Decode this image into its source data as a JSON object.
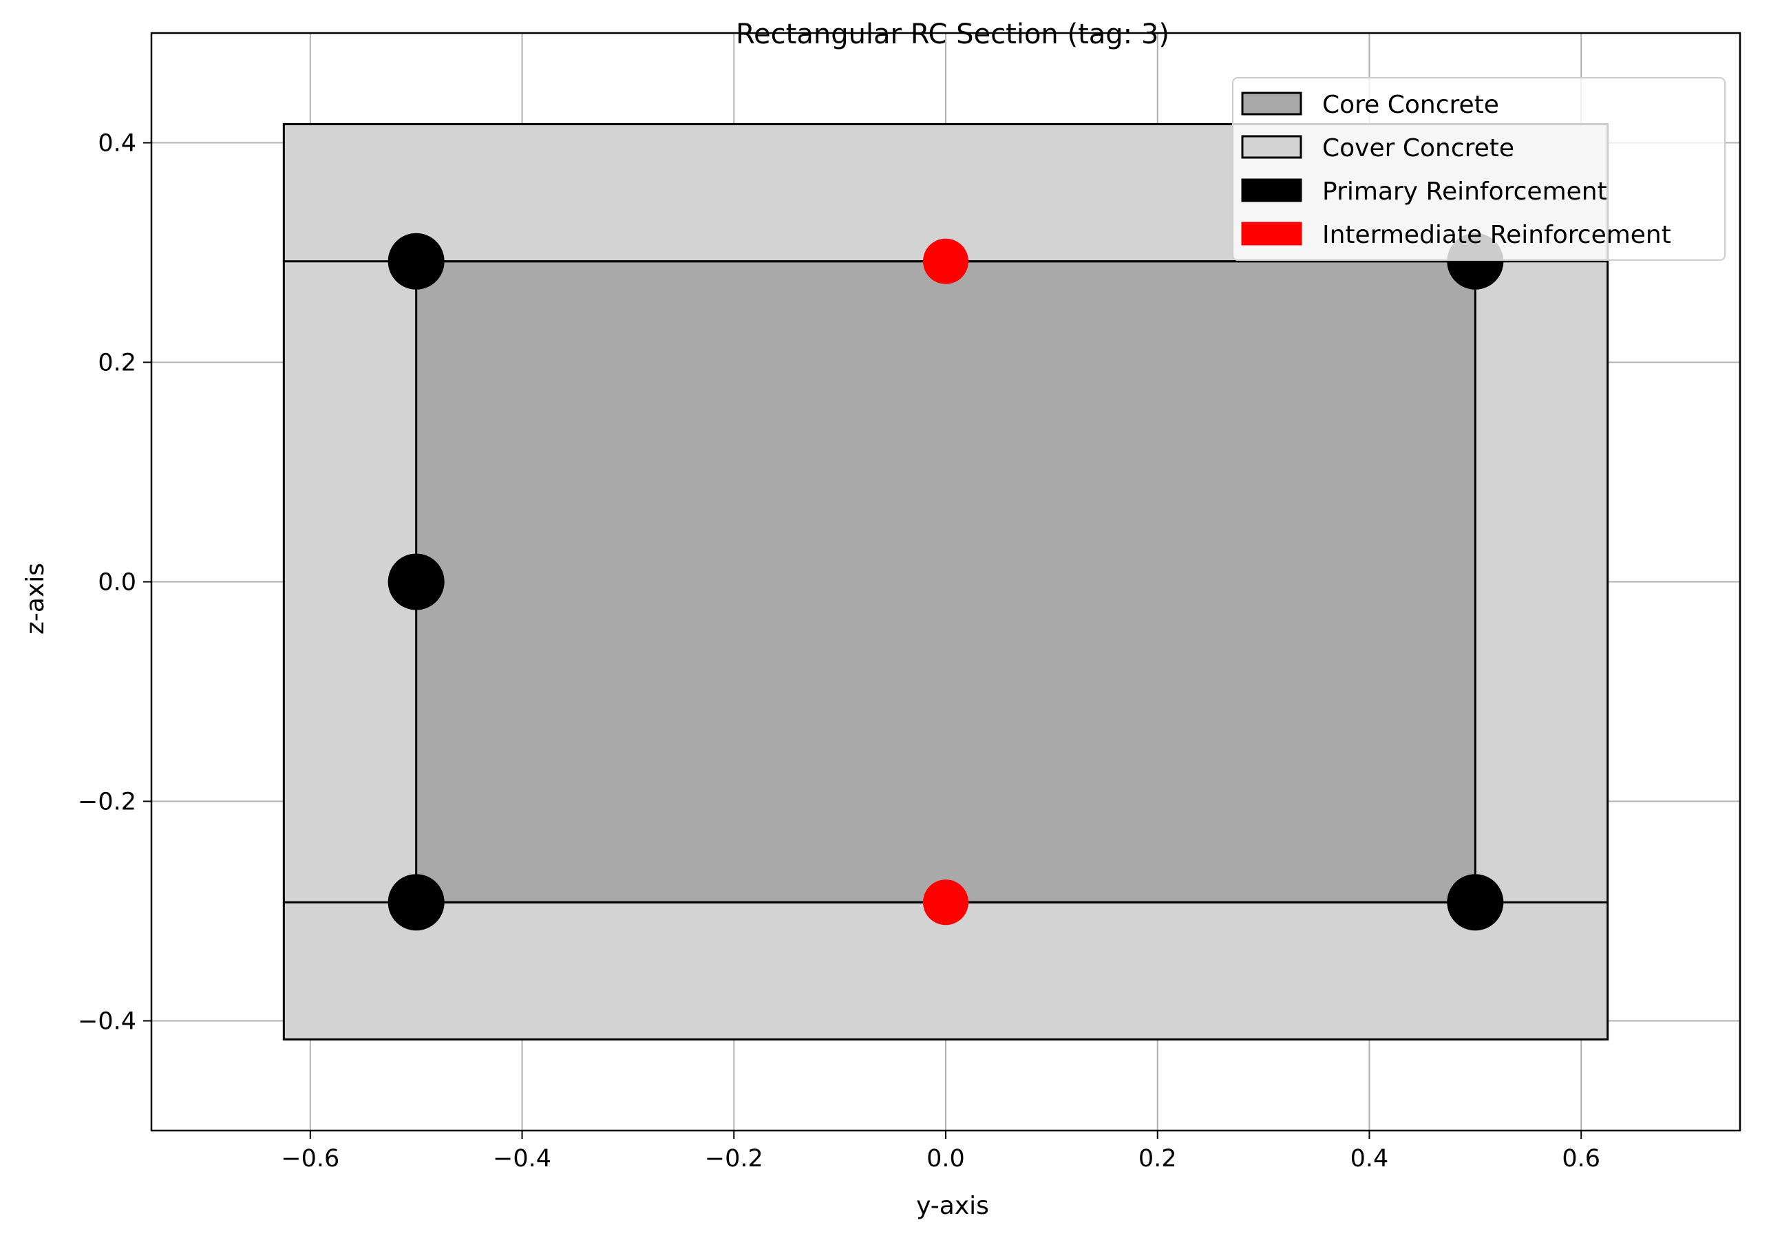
{
  "chart_data": {
    "type": "scatter",
    "title": "Rectangular RC Section (tag: 3)",
    "xlabel": "y-axis",
    "ylabel": "z-axis",
    "xlim": [
      -0.75,
      0.75
    ],
    "ylim": [
      -0.5,
      0.5
    ],
    "xticks": [
      -0.6,
      -0.4,
      -0.2,
      0.0,
      0.2,
      0.4,
      0.6
    ],
    "xtick_labels": [
      "−0.6",
      "−0.4",
      "−0.2",
      "0.0",
      "0.2",
      "0.4",
      "0.6"
    ],
    "yticks": [
      -0.4,
      -0.2,
      0.0,
      0.2,
      0.4
    ],
    "ytick_labels": [
      "−0.4",
      "−0.2",
      "0.0",
      "0.2",
      "0.4"
    ],
    "grid": true,
    "legend_position": "top-right",
    "regions": [
      {
        "name": "Cover Concrete",
        "y_range": [
          -0.625,
          0.625
        ],
        "z_range": [
          -0.417,
          0.417
        ],
        "color": "#d3d3d3"
      },
      {
        "name": "Core Concrete",
        "y_range": [
          -0.5,
          0.5
        ],
        "z_range": [
          -0.292,
          0.292
        ],
        "color": "#a9a9a9"
      }
    ],
    "series": [
      {
        "name": "Primary Reinforcement",
        "color": "#000000",
        "size": "large",
        "points": [
          {
            "y": -0.5,
            "z": 0.292
          },
          {
            "y": 0.5,
            "z": 0.292
          },
          {
            "y": -0.5,
            "z": 0.0
          },
          {
            "y": -0.5,
            "z": -0.292
          },
          {
            "y": 0.5,
            "z": -0.292
          }
        ]
      },
      {
        "name": "Intermediate Reinforcement",
        "color": "#ff0000",
        "size": "small",
        "points": [
          {
            "y": 0.0,
            "z": 0.292
          },
          {
            "y": 0.0,
            "z": -0.292
          }
        ]
      }
    ],
    "legend": [
      {
        "label": "Core Concrete",
        "color": "#a9a9a9",
        "edge": "#000000"
      },
      {
        "label": "Cover Concrete",
        "color": "#d3d3d3",
        "edge": "#000000"
      },
      {
        "label": "Primary Reinforcement",
        "color": "#000000",
        "edge": "#000000"
      },
      {
        "label": "Intermediate Reinforcement",
        "color": "#ff0000",
        "edge": "#ff0000"
      }
    ]
  }
}
